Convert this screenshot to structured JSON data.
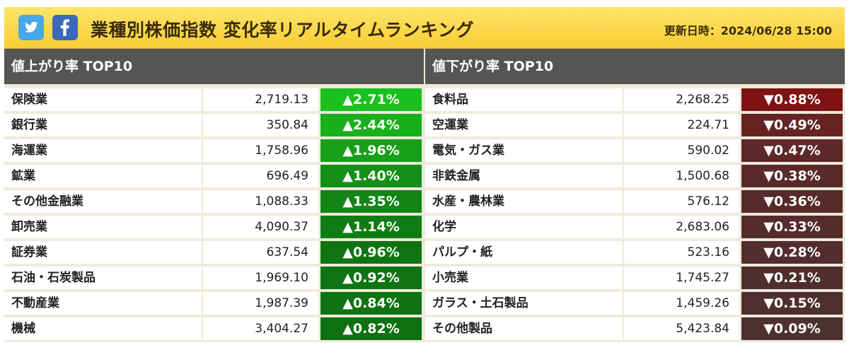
{
  "header": {
    "title": "業種別株価指数 変化率リアルタイムランキング",
    "updated": "更新日時：2024/06/28 15:00",
    "icons": [
      "twitter-icon",
      "facebook-icon"
    ]
  },
  "colors": {
    "header_bg": "#f9d43f",
    "panel_header_bg": "#555554",
    "gain_colors": [
      "#19c11f",
      "#18b01b",
      "#179f19",
      "#148f18",
      "#128516",
      "#107d14",
      "#0f7513",
      "#0f7413",
      "#0f7313",
      "#0e7011"
    ],
    "loss_colors": [
      "#7f1212",
      "#672222",
      "#5f2828",
      "#5a2a2a",
      "#572b2b",
      "#552c2c",
      "#532d2d",
      "#512e2e",
      "#4f2f2f",
      "#4d3030"
    ]
  },
  "gainers": {
    "header": "値上がり率 TOP10",
    "rows": [
      {
        "name": "保険業",
        "value": "2,719.13",
        "change": "▲2.71%"
      },
      {
        "name": "銀行業",
        "value": "350.84",
        "change": "▲2.44%"
      },
      {
        "name": "海運業",
        "value": "1,758.96",
        "change": "▲1.96%"
      },
      {
        "name": "鉱業",
        "value": "696.49",
        "change": "▲1.40%"
      },
      {
        "name": "その他金融業",
        "value": "1,088.33",
        "change": "▲1.35%"
      },
      {
        "name": "卸売業",
        "value": "4,090.37",
        "change": "▲1.14%"
      },
      {
        "name": "証券業",
        "value": "637.54",
        "change": "▲0.96%"
      },
      {
        "name": "石油・石炭製品",
        "value": "1,969.10",
        "change": "▲0.92%"
      },
      {
        "name": "不動産業",
        "value": "1,987.39",
        "change": "▲0.84%"
      },
      {
        "name": "機械",
        "value": "3,404.27",
        "change": "▲0.82%"
      }
    ]
  },
  "losers": {
    "header": "値下がり率 TOP10",
    "rows": [
      {
        "name": "食料品",
        "value": "2,268.25",
        "change": "▼0.88%"
      },
      {
        "name": "空運業",
        "value": "224.71",
        "change": "▼0.49%"
      },
      {
        "name": "電気・ガス業",
        "value": "590.02",
        "change": "▼0.47%"
      },
      {
        "name": "非鉄金属",
        "value": "1,500.68",
        "change": "▼0.38%"
      },
      {
        "name": "水産・農林業",
        "value": "576.12",
        "change": "▼0.36%"
      },
      {
        "name": "化学",
        "value": "2,683.06",
        "change": "▼0.33%"
      },
      {
        "name": "パルプ・紙",
        "value": "523.16",
        "change": "▼0.28%"
      },
      {
        "name": "小売業",
        "value": "1,745.27",
        "change": "▼0.21%"
      },
      {
        "name": "ガラス・土石製品",
        "value": "1,459.26",
        "change": "▼0.15%"
      },
      {
        "name": "その他製品",
        "value": "5,423.84",
        "change": "▼0.09%"
      }
    ]
  }
}
